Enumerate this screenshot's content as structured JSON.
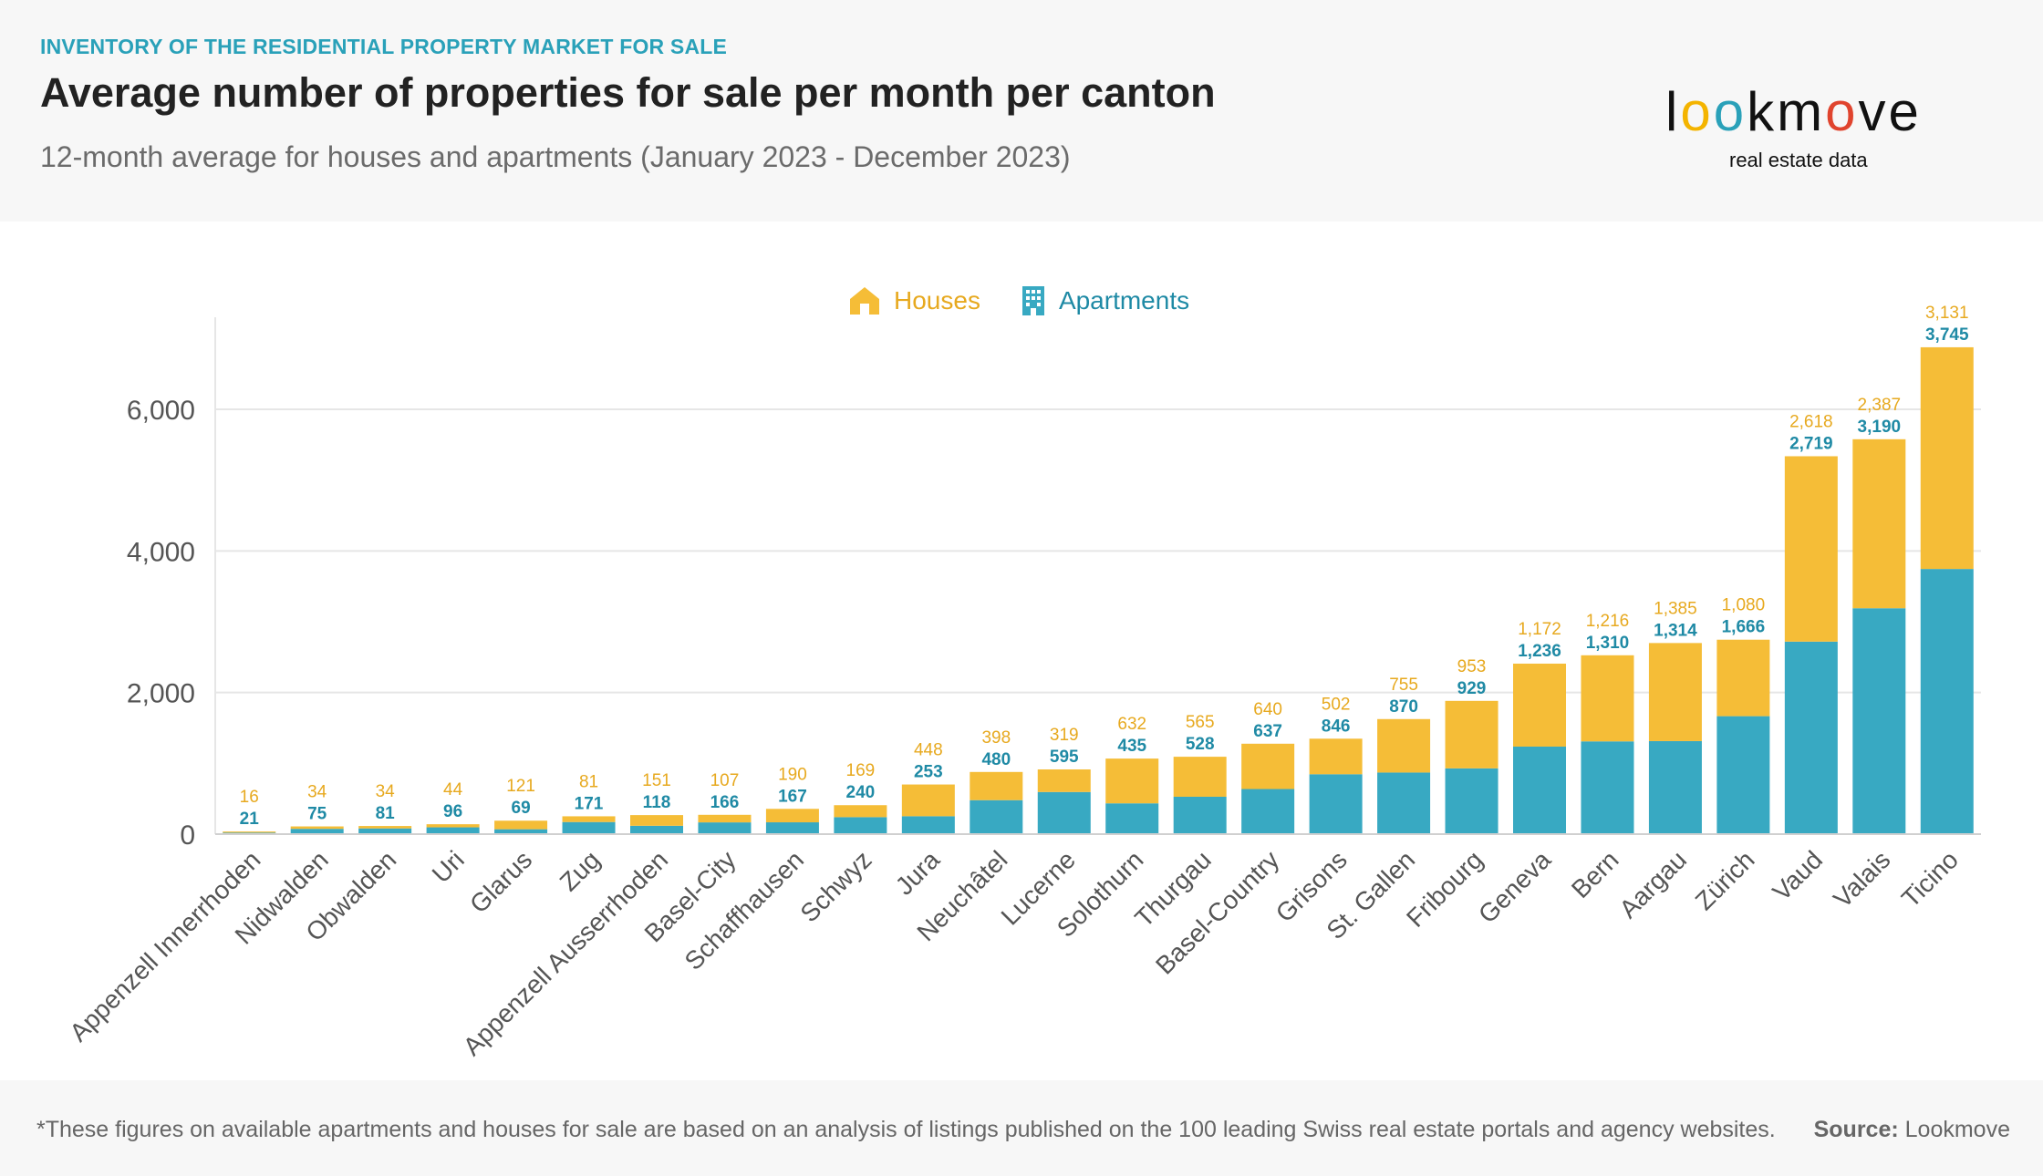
{
  "header": {
    "kicker": "INVENTORY OF THE RESIDENTIAL PROPERTY MARKET FOR SALE",
    "title": "Average number of properties for sale per month per canton",
    "subtitle": "12-month average for houses and apartments (January 2023 - December 2023)"
  },
  "logo": {
    "letters": [
      "l",
      "o",
      "o",
      "k",
      "m",
      "o",
      "v",
      "e"
    ],
    "letter_colors": [
      "#111111",
      "#f4b400",
      "#2aa1b9",
      "#111111",
      "#111111",
      "#e0442e",
      "#111111",
      "#111111"
    ],
    "tagline": "real estate data",
    "icon": "lookmove-logo"
  },
  "legend": {
    "houses_label": "Houses",
    "apartments_label": "Apartments",
    "houses_icon": "house-icon",
    "apartments_icon": "building-icon"
  },
  "colors": {
    "houses": "#f5bd37",
    "apartments": "#38a9c2",
    "houses_text": "#e7a91f",
    "apartments_text": "#1f8aa5",
    "axis_text": "#555555",
    "grid": "#e6e6e6"
  },
  "chart_data": {
    "type": "bar",
    "stacked": true,
    "title": "Average number of properties for sale per month per canton",
    "categories": [
      "Appenzell Innerrhoden",
      "Nidwalden",
      "Obwalden",
      "Uri",
      "Glarus",
      "Zug",
      "Appenzell Ausserrhoden",
      "Basel-City",
      "Schaffhausen",
      "Schwyz",
      "Jura",
      "Neuchâtel",
      "Lucerne",
      "Solothurn",
      "Thurgau",
      "Basel-Country",
      "Grisons",
      "St. Gallen",
      "Fribourg",
      "Geneva",
      "Bern",
      "Aargau",
      "Zürich",
      "Vaud",
      "Valais",
      "Ticino"
    ],
    "series": [
      {
        "name": "Apartments",
        "values": [
          21,
          75,
          81,
          96,
          69,
          171,
          118,
          166,
          167,
          240,
          253,
          480,
          595,
          435,
          528,
          637,
          846,
          870,
          929,
          1236,
          1310,
          1314,
          1666,
          2719,
          3190,
          3745
        ]
      },
      {
        "name": "Houses",
        "values": [
          16,
          34,
          34,
          44,
          121,
          81,
          151,
          107,
          190,
          169,
          448,
          398,
          319,
          632,
          565,
          640,
          502,
          755,
          953,
          1172,
          1216,
          1385,
          1080,
          2618,
          2387,
          3131
        ]
      }
    ],
    "data_labels": {
      "houses": [
        "16",
        "34",
        "34",
        "44",
        "121",
        "81",
        "151",
        "107",
        "190",
        "169",
        "448",
        "398",
        "319",
        "632",
        "565",
        "640",
        "502",
        "755",
        "953",
        "1,172",
        "1,216",
        "1,385",
        "1,080",
        "2,618",
        "2,387",
        "3,131"
      ],
      "apartments": [
        "21",
        "75",
        "81",
        "96",
        "69",
        "171",
        "118",
        "166",
        "167",
        "240",
        "253",
        "480",
        "595",
        "435",
        "528",
        "637",
        "846",
        "870",
        "929",
        "1,236",
        "1,310",
        "1,314",
        "1,666",
        "2,719",
        "3,190",
        "3,745"
      ]
    },
    "y_ticks": [
      0,
      2000,
      4000,
      6000
    ],
    "y_tick_labels": [
      "0",
      "2,000",
      "4,000",
      "6,000"
    ],
    "ylim": [
      0,
      7300
    ],
    "grid": true,
    "legend_position": "top-center",
    "xlabel": "",
    "ylabel": ""
  },
  "footer": {
    "footnote": "*These figures on available apartments and houses for sale are based on an analysis of listings published on the 100 leading Swiss real estate portals and agency websites.",
    "source_label": "Source:",
    "source_value": " Lookmove"
  }
}
